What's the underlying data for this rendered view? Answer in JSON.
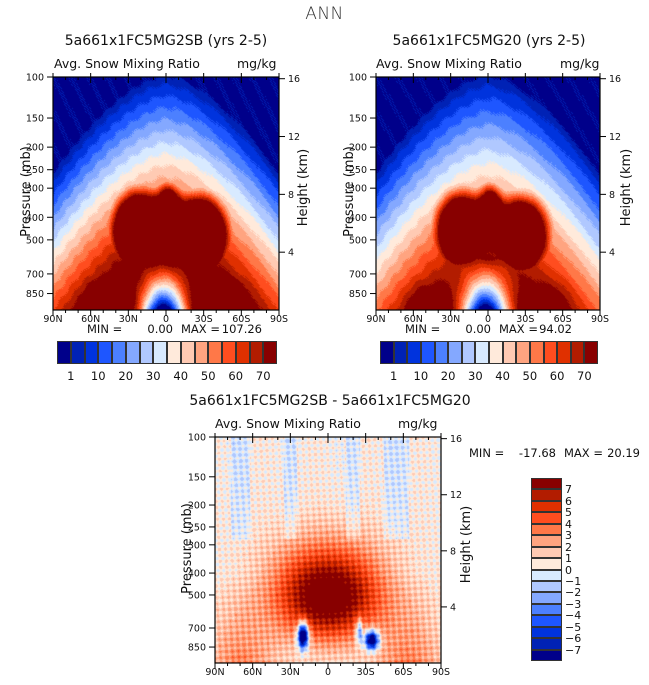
{
  "figure_title": "ANN",
  "chart_data": [
    {
      "type": "heatmap",
      "title": "5a661x1FC5MG2SB (yrs 2-5)",
      "subtitle_left": "Avg. Snow Mixing Ratio",
      "subtitle_right": "mg/kg",
      "xlabel": "",
      "ylabel": "Pressure (mb)",
      "ylabel_right": "Height (km)",
      "x_ticks": [
        "90N",
        "60N",
        "30N",
        "0",
        "30S",
        "60S",
        "90S"
      ],
      "y_ticks": [
        "100",
        "150",
        "200",
        "250",
        "300",
        "400",
        "500",
        "700",
        "850"
      ],
      "y_ticks_right": [
        "16",
        "12",
        "8",
        "4"
      ],
      "min_label": "MIN =",
      "min_value": "0.00",
      "max_label": "MAX =",
      "max_value": "107.26",
      "colorbar": {
        "orientation": "horizontal",
        "levels": [
          "1",
          "10",
          "20",
          "30",
          "40",
          "50",
          "60",
          "70"
        ],
        "colors": [
          "#00008a",
          "#0022b5",
          "#0033dd",
          "#1e56ff",
          "#4c80ff",
          "#84a8ff",
          "#b0c8ff",
          "#d8eaff",
          "#ffeadb",
          "#ffcab3",
          "#ffa480",
          "#ff7848",
          "#ff4d1f",
          "#e03000",
          "#b21c00",
          "#880000"
        ]
      }
    },
    {
      "type": "heatmap",
      "title": "5a661x1FC5MG20 (yrs 2-5)",
      "subtitle_left": "Avg. Snow Mixing Ratio",
      "subtitle_right": "mg/kg",
      "xlabel": "",
      "ylabel": "Pressure (mb)",
      "ylabel_right": "Height (km)",
      "x_ticks": [
        "90N",
        "60N",
        "30N",
        "0",
        "30S",
        "60S",
        "90S"
      ],
      "y_ticks": [
        "100",
        "150",
        "200",
        "250",
        "300",
        "400",
        "500",
        "700",
        "850"
      ],
      "y_ticks_right": [
        "16",
        "12",
        "8",
        "4"
      ],
      "min_label": "MIN =",
      "min_value": "0.00",
      "max_label": "MAX =",
      "max_value": "94.02",
      "colorbar": {
        "orientation": "horizontal",
        "levels": [
          "1",
          "10",
          "20",
          "30",
          "40",
          "50",
          "60",
          "70"
        ],
        "colors": [
          "#00008a",
          "#0022b5",
          "#0033dd",
          "#1e56ff",
          "#4c80ff",
          "#84a8ff",
          "#b0c8ff",
          "#d8eaff",
          "#ffeadb",
          "#ffcab3",
          "#ffa480",
          "#ff7848",
          "#ff4d1f",
          "#e03000",
          "#b21c00",
          "#880000"
        ]
      }
    },
    {
      "type": "heatmap",
      "title": "5a661x1FC5MG2SB - 5a661x1FC5MG20",
      "subtitle_left": "Avg. Snow Mixing Ratio",
      "subtitle_right": "mg/kg",
      "xlabel": "",
      "ylabel": "Pressure (mb)",
      "ylabel_right": "Height (km)",
      "x_ticks": [
        "90N",
        "60N",
        "30N",
        "0",
        "30S",
        "60S",
        "90S"
      ],
      "y_ticks": [
        "100",
        "150",
        "200",
        "250",
        "300",
        "400",
        "500",
        "700",
        "850"
      ],
      "y_ticks_right": [
        "16",
        "12",
        "8",
        "4"
      ],
      "min_label": "MIN =",
      "min_value": "-17.68",
      "max_label": "MAX =",
      "max_value": "20.19",
      "colorbar": {
        "orientation": "vertical",
        "levels": [
          "7",
          "6",
          "5",
          "4",
          "3",
          "2",
          "1",
          "0",
          "-1",
          "-2",
          "-3",
          "-4",
          "-5",
          "-6",
          "-7"
        ],
        "colors": [
          "#880000",
          "#b21c00",
          "#e03000",
          "#ff4d1f",
          "#ff7848",
          "#ffa480",
          "#ffcab3",
          "#ffeadb",
          "#d8eaff",
          "#b0c8ff",
          "#84a8ff",
          "#4c80ff",
          "#1e56ff",
          "#0033dd",
          "#0022b5",
          "#00008a"
        ]
      }
    }
  ]
}
